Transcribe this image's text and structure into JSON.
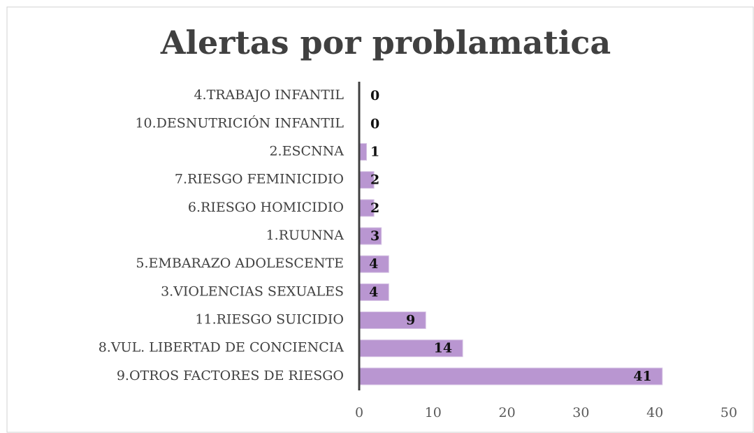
{
  "chart_data": {
    "type": "bar",
    "orientation": "horizontal",
    "title": "Alertas por problamatica",
    "categories": [
      "4.TRABAJO INFANTIL",
      "10.DESNUTRICIÓN INFANTIL",
      "2.ESCNNA",
      "7.RIESGO FEMINICIDIO",
      "6.RIESGO HOMICIDIO",
      "1.RUUNNA",
      "5.EMBARAZO ADOLESCENTE",
      "3.VIOLENCIAS SEXUALES",
      "11.RIESGO SUICIDIO",
      "8.VUL. LIBERTAD DE CONCIENCIA",
      "9.OTROS FACTORES DE RIESGO"
    ],
    "values": [
      0,
      0,
      1,
      2,
      2,
      3,
      4,
      4,
      9,
      14,
      41
    ],
    "color": "#b996d1",
    "xlim": [
      0,
      50
    ],
    "xticks": [
      0,
      10,
      20,
      30,
      40,
      50
    ],
    "grid": false
  }
}
